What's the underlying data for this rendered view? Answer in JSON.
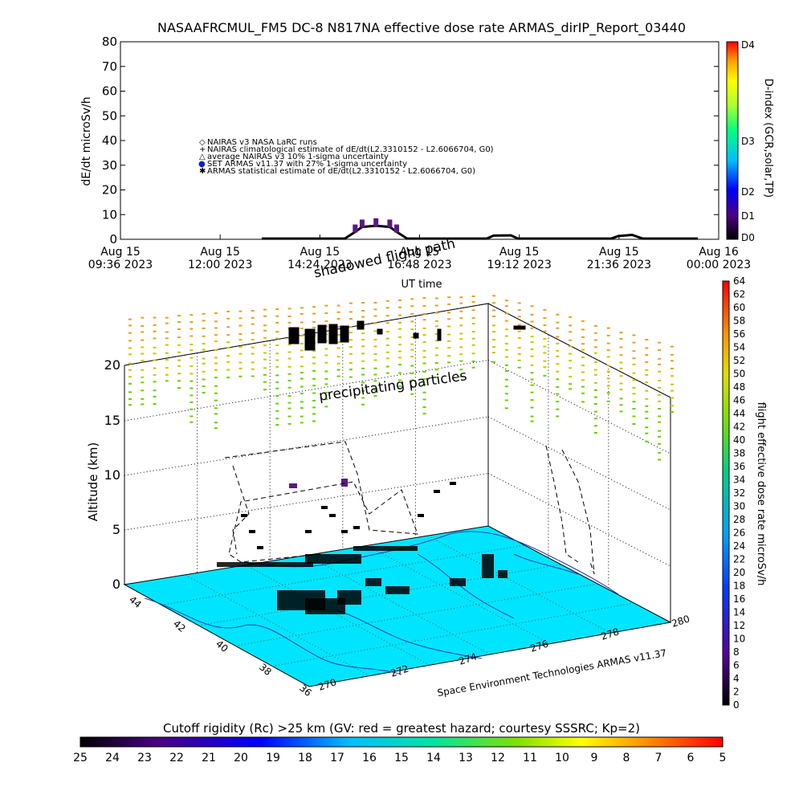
{
  "title": "NASAAFRCMUL_FM5 DC-8    N817NA effective dose rate ARMAS_dirIP_Report_03440",
  "chart_data": [
    {
      "type": "line",
      "name": "dose-rate-time-series",
      "ylabel": "dE/dt microSv/h",
      "xlabel": "UT time",
      "ylim": [
        0,
        80
      ],
      "yticks": [
        "0",
        "10",
        "20",
        "30",
        "40",
        "50",
        "60",
        "70",
        "80"
      ],
      "xticks": [
        {
          "day": "Aug 15",
          "time": "09:36 2023"
        },
        {
          "day": "Aug 15",
          "time": "12:00 2023"
        },
        {
          "day": "Aug 15",
          "time": "14:24 2023"
        },
        {
          "day": "Aug 15",
          "time": "16:48 2023"
        },
        {
          "day": "Aug 15",
          "time": "19:12 2023"
        },
        {
          "day": "Aug 15",
          "time": "21:36 2023"
        },
        {
          "day": "Aug 16",
          "time": "00:00 2023"
        }
      ],
      "legend": [
        {
          "symbol": "◇",
          "label": "NAIRAS v3 NASA LaRC runs"
        },
        {
          "symbol": "+",
          "label": "NAIRAS climatological estimate of dE/dt(L2.3310152 - L2.6066704, G0)"
        },
        {
          "symbol": "△",
          "label": "average NAIRAS v3 10% 1-sigma uncertainty"
        },
        {
          "symbol": "●",
          "label": "SET ARMAS v11.37 with 27% 1-sigma uncertainty"
        },
        {
          "symbol": "✱",
          "label": "ARMAS statistical estimate of dE/dt(L2.3310152 - L2.6066704, G0)"
        }
      ],
      "right_axis": {
        "label": "D-index (GCR,solar,TP)",
        "levels": [
          "D4",
          "D3",
          "D2",
          "D1",
          "D0"
        ],
        "colors": [
          "#000000",
          "#4b0082",
          "#0000ff",
          "#00bfff",
          "#00ff7f",
          "#adff2f",
          "#ffff00",
          "#ffa500",
          "#ff0000"
        ]
      },
      "series": [
        {
          "name": "NAIRAS",
          "points": [
            [
              "13:00",
              0.3
            ],
            [
              "15:00",
              0.3
            ],
            [
              "15:15",
              3
            ],
            [
              "15:25",
              5
            ],
            [
              "15:45",
              5.5
            ],
            [
              "16:05",
              5
            ],
            [
              "16:15",
              3
            ],
            [
              "16:30",
              0.3
            ],
            [
              "18:25",
              0.3
            ],
            [
              "18:35",
              1.5
            ],
            [
              "19:00",
              1.6
            ],
            [
              "19:10",
              0.3
            ],
            [
              "21:25",
              0.3
            ],
            [
              "21:35",
              1.3
            ],
            [
              "21:55",
              1.8
            ],
            [
              "22:10",
              0.3
            ],
            [
              "23:30",
              0.3
            ]
          ]
        }
      ]
    },
    {
      "type": "3d-flight-path",
      "ylabel": "Altitude (km)",
      "zticks": [
        "0",
        "5",
        "10",
        "15",
        "20"
      ],
      "lat_ticks": [
        "36",
        "38",
        "40",
        "42",
        "44"
      ],
      "lon_ticks": [
        "270",
        "272",
        "274",
        "276",
        "278",
        "280"
      ],
      "right_colorbar": {
        "label": "flight effective dose rate microSv/h",
        "ticks": [
          "0",
          "2",
          "4",
          "6",
          "8",
          "10",
          "12",
          "14",
          "16",
          "18",
          "20",
          "22",
          "24",
          "26",
          "28",
          "30",
          "32",
          "34",
          "36",
          "38",
          "40",
          "42",
          "44",
          "46",
          "48",
          "50",
          "52",
          "54",
          "56",
          "58",
          "60",
          "62",
          "64"
        ]
      },
      "annotations": [
        "shadowed flight path",
        "precipitating particles"
      ],
      "credit": "Space Environment Technologies ARMAS v11.37"
    }
  ],
  "bottom_colorbar": {
    "title": "Cutoff rigidity (Rc) >25 km (GV: red = greatest hazard; courtesy SSSRC; Kp=2)",
    "ticks": [
      "25",
      "24",
      "23",
      "22",
      "21",
      "20",
      "19",
      "18",
      "17",
      "16",
      "15",
      "14",
      "13",
      "12",
      "11",
      "10",
      "9",
      "8",
      "7",
      "6",
      "5"
    ]
  },
  "colors": {
    "map_fill": "#00e5ff",
    "coast": "#1a3fbf",
    "precip_top": "#e8a020",
    "precip_mid": "#c8c800",
    "precip_low": "#6ad000"
  }
}
